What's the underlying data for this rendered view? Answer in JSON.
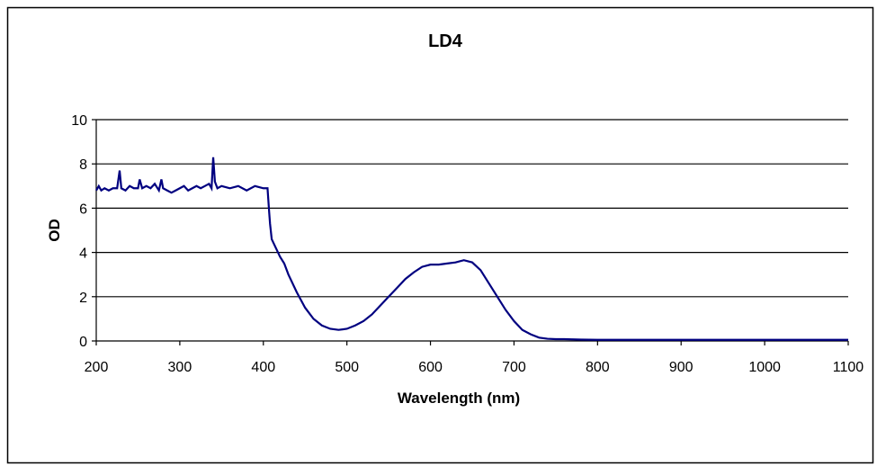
{
  "chart_data": {
    "type": "line",
    "title": "LD4",
    "xlabel": "Wavelength (nm)",
    "ylabel": "OD",
    "xlim": [
      200,
      1100
    ],
    "ylim": [
      0,
      10
    ],
    "x_ticks": [
      "200",
      "300",
      "400",
      "500",
      "600",
      "700",
      "800",
      "900",
      "1000",
      "1100"
    ],
    "y_ticks": [
      "0",
      "2",
      "4",
      "6",
      "8",
      "10"
    ],
    "grid": "horizontal",
    "legend": "none",
    "series": [
      {
        "color": "#000080",
        "x": [
          200,
          203,
          206,
          210,
          215,
          220,
          225,
          228,
          230,
          235,
          240,
          245,
          250,
          252,
          255,
          260,
          265,
          270,
          275,
          278,
          280,
          285,
          290,
          295,
          300,
          305,
          310,
          315,
          320,
          325,
          330,
          335,
          338,
          340,
          342,
          345,
          350,
          360,
          370,
          380,
          390,
          400,
          405,
          407,
          408,
          410,
          415,
          420,
          425,
          430,
          440,
          450,
          460,
          470,
          480,
          490,
          500,
          510,
          520,
          530,
          540,
          550,
          560,
          570,
          580,
          590,
          600,
          610,
          620,
          630,
          640,
          645,
          650,
          660,
          670,
          680,
          690,
          700,
          710,
          720,
          730,
          740,
          750,
          760,
          770,
          780,
          800,
          850,
          900,
          950,
          1000,
          1050,
          1100
        ],
        "y": [
          6.8,
          7.0,
          6.8,
          6.9,
          6.8,
          6.9,
          6.9,
          7.7,
          6.9,
          6.8,
          7.0,
          6.9,
          6.9,
          7.3,
          6.9,
          7.0,
          6.9,
          7.1,
          6.8,
          7.3,
          6.9,
          6.8,
          6.7,
          6.8,
          6.9,
          7.0,
          6.8,
          6.9,
          7.0,
          6.9,
          7.0,
          7.1,
          6.9,
          8.3,
          7.2,
          6.9,
          7.0,
          6.9,
          7.0,
          6.8,
          7.0,
          6.9,
          6.9,
          5.8,
          5.3,
          4.6,
          4.2,
          3.8,
          3.5,
          3.0,
          2.2,
          1.5,
          1.0,
          0.7,
          0.55,
          0.5,
          0.55,
          0.7,
          0.9,
          1.2,
          1.6,
          2.0,
          2.4,
          2.8,
          3.1,
          3.35,
          3.45,
          3.45,
          3.5,
          3.55,
          3.65,
          3.6,
          3.55,
          3.2,
          2.6,
          2.0,
          1.4,
          0.9,
          0.5,
          0.3,
          0.15,
          0.1,
          0.08,
          0.08,
          0.07,
          0.06,
          0.05,
          0.05,
          0.05,
          0.05,
          0.05,
          0.05,
          0.05
        ]
      }
    ]
  }
}
